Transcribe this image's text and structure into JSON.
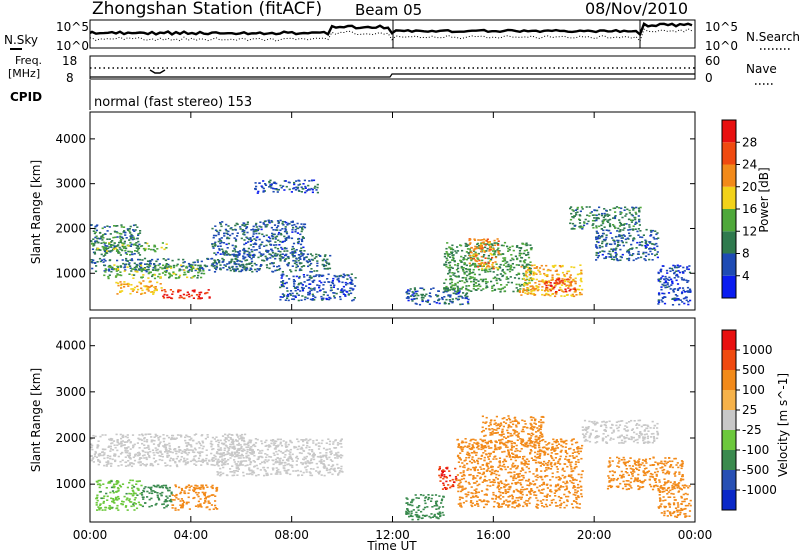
{
  "header": {
    "station": "Zhongshan Station (fitACF)",
    "beam": "Beam 05",
    "date": "08/Nov/2010"
  },
  "top_panels": {
    "noise_sky_label": "N.Sky",
    "noise_search_label": "N.Search",
    "noise_left_ticks": [
      "10^5",
      "10^0"
    ],
    "noise_right_ticks": [
      "10^5",
      "10^0"
    ],
    "freq_label_line1": "Freq.",
    "freq_label_line2": "[MHz]",
    "freq_ticks": [
      "18",
      "8"
    ],
    "nave_label": "Nave",
    "nave_ticks": [
      "60",
      "0"
    ],
    "cpid_label": "CPID",
    "cpid_text": "normal (fast stereo) 153"
  },
  "colors": {
    "power_scale": [
      "#0a1cf0",
      "#1e4bb4",
      "#2f7a4e",
      "#4fa83a",
      "#f2d21a",
      "#f28a1a",
      "#f04a10",
      "#e81010"
    ],
    "velocity_scale": [
      "#e81010",
      "#f04a10",
      "#f28a1a",
      "#f6b24a",
      "#c8c8c8",
      "#6cc83c",
      "#3a8a4e",
      "#2850b4",
      "#0a28c8"
    ]
  },
  "chart_data": [
    {
      "type": "heatmap",
      "panel": "power",
      "ylabel": "Slant Range [km]",
      "xlabel": "",
      "ylim": [
        180,
        4600
      ],
      "xlim": [
        0,
        24
      ],
      "yticks": [
        "1000",
        "2000",
        "3000",
        "4000"
      ],
      "xticks": [
        "00:00",
        "04:00",
        "08:00",
        "12:00",
        "16:00",
        "20:00",
        "00:00"
      ],
      "colorbar": {
        "label": "Power [dB]",
        "range": [
          0,
          32
        ],
        "ticks": [
          "4",
          "8",
          "12",
          "16",
          "20",
          "24",
          "28"
        ]
      },
      "regions": [
        {
          "t": [
            0.0,
            6.2
          ],
          "r": [
            1050,
            1350
          ],
          "v": 8
        },
        {
          "t": [
            0.0,
            2.0
          ],
          "r": [
            1400,
            2100
          ],
          "v": 10
        },
        {
          "t": [
            0.2,
            3.0
          ],
          "r": [
            1500,
            1700
          ],
          "v": 14
        },
        {
          "t": [
            0.5,
            4.5
          ],
          "r": [
            900,
            1200
          ],
          "v": 14
        },
        {
          "t": [
            1.0,
            2.8
          ],
          "r": [
            550,
            850
          ],
          "v": 20
        },
        {
          "t": [
            2.8,
            4.8
          ],
          "r": [
            450,
            650
          ],
          "v": 28
        },
        {
          "t": [
            4.8,
            8.5
          ],
          "r": [
            1400,
            2200
          ],
          "v": 7
        },
        {
          "t": [
            5.5,
            9.5
          ],
          "r": [
            1050,
            1450
          ],
          "v": 8
        },
        {
          "t": [
            6.5,
            9.0
          ],
          "r": [
            2800,
            3100
          ],
          "v": 6
        },
        {
          "t": [
            7.5,
            10.5
          ],
          "r": [
            400,
            1000
          ],
          "v": 6
        },
        {
          "t": [
            12.5,
            15.0
          ],
          "r": [
            300,
            700
          ],
          "v": 7
        },
        {
          "t": [
            14.0,
            17.5
          ],
          "r": [
            600,
            1700
          ],
          "v": 12
        },
        {
          "t": [
            15.0,
            16.2
          ],
          "r": [
            1100,
            1800
          ],
          "v": 22
        },
        {
          "t": [
            17.0,
            19.5
          ],
          "r": [
            500,
            1200
          ],
          "v": 20
        },
        {
          "t": [
            18.0,
            19.2
          ],
          "r": [
            600,
            900
          ],
          "v": 27
        },
        {
          "t": [
            19.0,
            21.8
          ],
          "r": [
            2000,
            2500
          ],
          "v": 10
        },
        {
          "t": [
            20.0,
            22.5
          ],
          "r": [
            1300,
            2000
          ],
          "v": 7
        },
        {
          "t": [
            22.5,
            23.8
          ],
          "r": [
            300,
            1200
          ],
          "v": 5
        }
      ]
    },
    {
      "type": "heatmap",
      "panel": "velocity",
      "ylabel": "Slant Range [km]",
      "xlabel": "Time UT",
      "ylim": [
        180,
        4600
      ],
      "xlim": [
        0,
        24
      ],
      "yticks": [
        "1000",
        "2000",
        "3000",
        "4000"
      ],
      "xticks": [
        "00:00",
        "04:00",
        "08:00",
        "12:00",
        "16:00",
        "20:00",
        "00:00"
      ],
      "colorbar": {
        "label": "Velocity [m s^-1]",
        "range": [
          -1200,
          1200
        ],
        "ticks": [
          "1000",
          "500",
          "100",
          "25",
          "-25",
          "-100",
          "-500",
          "-1000"
        ]
      },
      "regions": [
        {
          "t": [
            0.0,
            6.5
          ],
          "r": [
            1400,
            2100
          ],
          "v": 0
        },
        {
          "t": [
            5.0,
            10.0
          ],
          "r": [
            1200,
            2000
          ],
          "v": 0
        },
        {
          "t": [
            0.2,
            2.0
          ],
          "r": [
            450,
            1100
          ],
          "v": 80
        },
        {
          "t": [
            2.0,
            3.2
          ],
          "r": [
            500,
            1000
          ],
          "v": 200
        },
        {
          "t": [
            3.2,
            5.0
          ],
          "r": [
            450,
            1000
          ],
          "v": -300
        },
        {
          "t": [
            12.5,
            14.0
          ],
          "r": [
            250,
            800
          ],
          "v": 150
        },
        {
          "t": [
            13.8,
            14.5
          ],
          "r": [
            900,
            1400
          ],
          "v": -900
        },
        {
          "t": [
            14.5,
            19.5
          ],
          "r": [
            500,
            2000
          ],
          "v": -250
        },
        {
          "t": [
            15.5,
            18.0
          ],
          "r": [
            1800,
            2500
          ],
          "v": -300
        },
        {
          "t": [
            19.5,
            22.5
          ],
          "r": [
            1900,
            2400
          ],
          "v": 0
        },
        {
          "t": [
            20.5,
            23.5
          ],
          "r": [
            900,
            1600
          ],
          "v": -300
        },
        {
          "t": [
            22.5,
            23.8
          ],
          "r": [
            300,
            1000
          ],
          "v": -150
        }
      ]
    }
  ]
}
